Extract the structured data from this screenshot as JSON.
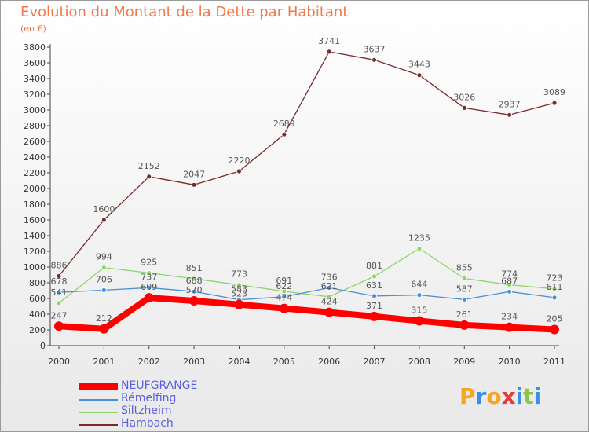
{
  "title": "Evolution du Montant de la Dette par Habitant",
  "unit": "(en €)",
  "logo": {
    "text": "Proxiti",
    "letters": [
      {
        "ch": "P",
        "color": "#f5a623"
      },
      {
        "ch": "r",
        "color": "#3a8ee6"
      },
      {
        "ch": "o",
        "color": "#f5a623"
      },
      {
        "ch": "x",
        "color": "#e23b3b"
      },
      {
        "ch": "i",
        "color": "#3a8ee6"
      },
      {
        "ch": "t",
        "color": "#8bc34a"
      },
      {
        "ch": "i",
        "color": "#3a8ee6"
      }
    ]
  },
  "chart_data": {
    "type": "line",
    "title": "Evolution du Montant de la Dette par Habitant",
    "ylabel": "(en €)",
    "xlabel": "",
    "categories": [
      "2000",
      "2001",
      "2002",
      "2003",
      "2004",
      "2005",
      "2006",
      "2007",
      "2008",
      "2009",
      "2010",
      "2011"
    ],
    "ylim": [
      0,
      3800
    ],
    "ystep": 200,
    "grid": false,
    "legend_position": "bottom-left",
    "series": [
      {
        "name": "NEUFGRANGE",
        "color": "#ff0000",
        "emphasis": true,
        "values": [
          247,
          212,
          609,
          570,
          523,
          474,
          424,
          371,
          315,
          261,
          234,
          205
        ],
        "labels": [
          "247",
          "212",
          "609",
          "570",
          "523",
          "474",
          "424",
          "371",
          "315",
          "261",
          "234",
          "205"
        ]
      },
      {
        "name": "Rémelfing",
        "color": "#4a90d9",
        "values": [
          678,
          706,
          737,
          688,
          583,
          622,
          736,
          631,
          644,
          587,
          687,
          611
        ],
        "labels": [
          "678",
          "706",
          "737",
          "688",
          "583",
          "622",
          "736",
          "631",
          "644",
          "587",
          "687",
          "611"
        ]
      },
      {
        "name": "Siltzheim",
        "color": "#8fd46a",
        "values": [
          541,
          994,
          925,
          851,
          773,
          691,
          621,
          881,
          1235,
          855,
          774,
          723
        ],
        "labels": [
          "541",
          "994",
          "925",
          "851",
          "773",
          "691",
          "621",
          "881",
          "1235",
          "855",
          "774",
          "723"
        ]
      },
      {
        "name": "Hambach",
        "color": "#7b2a2a",
        "values": [
          886,
          1600,
          2152,
          2047,
          2220,
          2689,
          3741,
          3637,
          3443,
          3026,
          2937,
          3089
        ],
        "labels": [
          "886",
          "1600",
          "2152",
          "2047",
          "2220",
          "2689",
          "3741",
          "3637",
          "3443",
          "3026",
          "2937",
          "3089"
        ]
      }
    ]
  }
}
